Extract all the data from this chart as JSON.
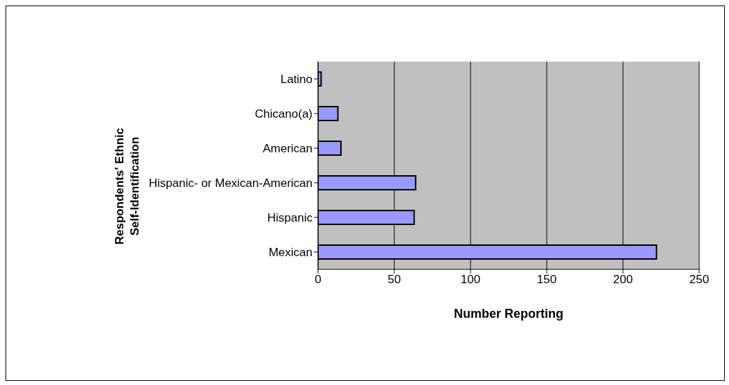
{
  "chart_data": {
    "type": "bar",
    "orientation": "horizontal",
    "xlabel": "Number Reporting",
    "ylabel": "Respondents' Ethnic Self-Identification",
    "categories": [
      "Latino",
      "Chicano(a)",
      "American",
      "Hispanic- or Mexican-American",
      "Hispanic",
      "Mexican"
    ],
    "values": [
      2,
      13,
      15,
      64,
      63,
      222
    ],
    "color": "#9999ff",
    "xlim": [
      0,
      250
    ],
    "xticks": [
      0,
      50,
      100,
      150,
      200,
      250
    ],
    "grid": "x"
  }
}
